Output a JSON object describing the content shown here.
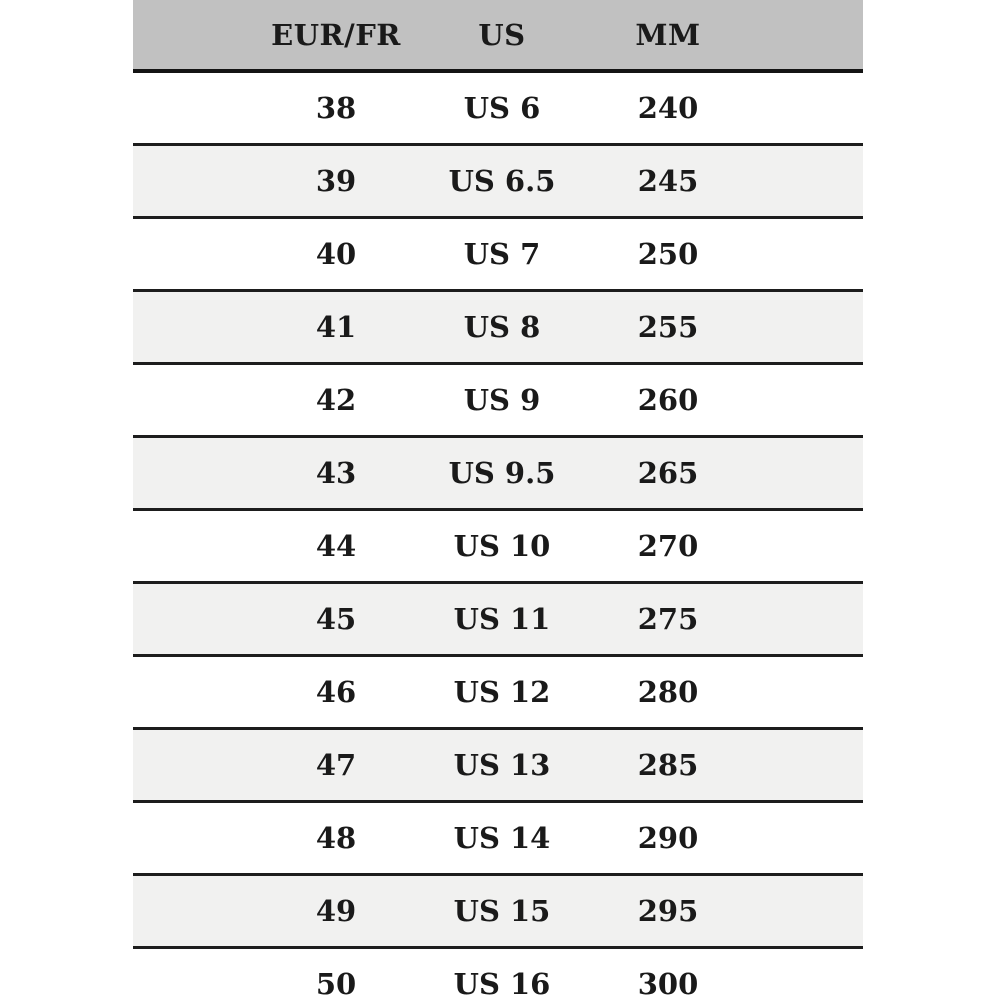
{
  "chart_data": {
    "type": "table",
    "title": "",
    "columns": [
      "EUR/FR",
      "US",
      "MM"
    ],
    "rows": [
      [
        "38",
        "US 6",
        "240"
      ],
      [
        "39",
        "US 6.5",
        "245"
      ],
      [
        "40",
        "US 7",
        "250"
      ],
      [
        "41",
        "US 8",
        "255"
      ],
      [
        "42",
        "US 9",
        "260"
      ],
      [
        "43",
        "US 9.5",
        "265"
      ],
      [
        "44",
        "US 10",
        "270"
      ],
      [
        "45",
        "US 11",
        "275"
      ],
      [
        "46",
        "US 12",
        "280"
      ],
      [
        "47",
        "US 13",
        "285"
      ],
      [
        "48",
        "US 14",
        "290"
      ],
      [
        "49",
        "US 15",
        "295"
      ],
      [
        "50",
        "US 16",
        "300"
      ]
    ],
    "layout": {
      "striped": true,
      "header_position": "top",
      "text_align": "center",
      "last_row_clipped": true
    }
  },
  "colors": {
    "header_bg": "#c1c1c1",
    "stripe_bg": "#f1f1f0",
    "row_bg": "#ffffff",
    "text": "#1a1a1a",
    "rule_line": "#1d1d1d",
    "page_bg": "#ffffff"
  }
}
